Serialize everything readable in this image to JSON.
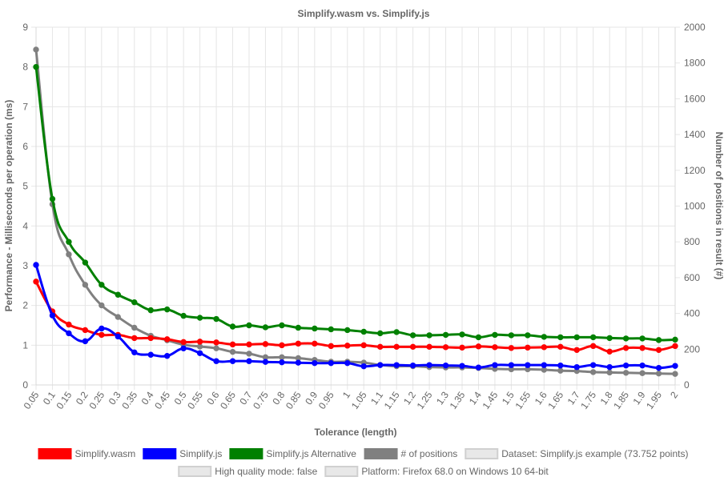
{
  "chart_data": {
    "type": "line",
    "title": "Simplify.wasm vs. Simplify.js",
    "xlabel": "Tolerance (length)",
    "ylabel": "Performance - Milliseconds per operation (ms)",
    "y2label": "Number of positions in result (#)",
    "categories": [
      "0.05",
      "0.1",
      "0.15",
      "0.2",
      "0.25",
      "0.3",
      "0.35",
      "0.4",
      "0.45",
      "0.5",
      "0.55",
      "0.6",
      "0.65",
      "0.7",
      "0.75",
      "0.8",
      "0.85",
      "0.9",
      "0.95",
      "1",
      "1.05",
      "1.1",
      "1.15",
      "1.2",
      "1.25",
      "1.3",
      "1.35",
      "1.4",
      "1.45",
      "1.5",
      "1.55",
      "1.6",
      "1.65",
      "1.7",
      "1.75",
      "1.8",
      "1.85",
      "1.9",
      "1.95",
      "2"
    ],
    "ylim": [
      0,
      9
    ],
    "y2lim": [
      0,
      2000
    ],
    "grid": true,
    "legend_position": "bottom",
    "series": [
      {
        "name": "Simplify.wasm",
        "axis": "left",
        "color": "#ff0000",
        "values": [
          2.6,
          1.85,
          1.52,
          1.38,
          1.26,
          1.26,
          1.18,
          1.18,
          1.15,
          1.08,
          1.09,
          1.07,
          1.02,
          1.02,
          1.03,
          1.0,
          1.04,
          1.04,
          0.98,
          0.99,
          1.0,
          0.96,
          0.96,
          0.96,
          0.96,
          0.95,
          0.94,
          0.97,
          0.95,
          0.93,
          0.94,
          0.95,
          0.96,
          0.88,
          0.98,
          0.84,
          0.93,
          0.93,
          0.88,
          0.98
        ]
      },
      {
        "name": "Simplify.js",
        "axis": "left",
        "color": "#0000ff",
        "values": [
          3.02,
          1.75,
          1.3,
          1.1,
          1.42,
          1.22,
          0.82,
          0.76,
          0.73,
          0.92,
          0.8,
          0.6,
          0.6,
          0.6,
          0.58,
          0.57,
          0.56,
          0.55,
          0.55,
          0.55,
          0.47,
          0.5,
          0.5,
          0.49,
          0.5,
          0.49,
          0.48,
          0.44,
          0.5,
          0.5,
          0.5,
          0.5,
          0.49,
          0.45,
          0.5,
          0.45,
          0.49,
          0.49,
          0.43,
          0.48
        ]
      },
      {
        "name": "Simplify.js Alternative",
        "axis": "left",
        "color": "#008000",
        "values": [
          8.0,
          4.68,
          3.6,
          3.08,
          2.52,
          2.27,
          2.08,
          1.88,
          1.9,
          1.74,
          1.69,
          1.66,
          1.47,
          1.5,
          1.45,
          1.5,
          1.44,
          1.42,
          1.4,
          1.38,
          1.34,
          1.3,
          1.33,
          1.25,
          1.25,
          1.26,
          1.27,
          1.2,
          1.26,
          1.25,
          1.25,
          1.21,
          1.2,
          1.2,
          1.2,
          1.18,
          1.17,
          1.17,
          1.13,
          1.14
        ]
      },
      {
        "name": "# of positions",
        "axis": "right",
        "color": "#808080",
        "values": [
          1875,
          1010,
          730,
          560,
          445,
          380,
          320,
          275,
          250,
          225,
          215,
          205,
          185,
          175,
          155,
          155,
          150,
          140,
          130,
          130,
          125,
          112,
          105,
          105,
          100,
          98,
          98,
          95,
          90,
          88,
          88,
          85,
          80,
          78,
          72,
          70,
          68,
          66,
          64,
          62
        ]
      }
    ],
    "legend_extra": [
      "Dataset: Simplify.js example (73.752 points)",
      "High quality mode: false",
      "Platform: Firefox 68.0 on Windows 10 64-bit"
    ],
    "yticks": [
      "0",
      "1",
      "2",
      "3",
      "4",
      "5",
      "6",
      "7",
      "8",
      "9"
    ],
    "y2ticks": [
      "0",
      "200",
      "400",
      "600",
      "800",
      "1000",
      "1200",
      "1400",
      "1600",
      "1800",
      "2000"
    ]
  }
}
